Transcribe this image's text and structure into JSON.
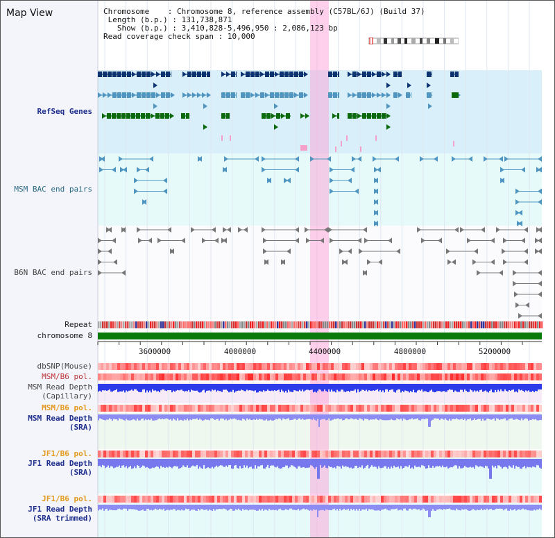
{
  "page": {
    "title": "Map View"
  },
  "info": {
    "chromosome_label": "Chromosome",
    "chromosome_value": "Chromosome 8, reference assembly (C57BL/6J) (Build 37)",
    "length_label": "Length (b.p.)",
    "length_value": "131,738,871",
    "show_label": "Show (b.p.)",
    "show_value": "3,410,828-5,496,950 : 2,086,123 bp",
    "span_label": "Read coverage check span",
    "span_value": "10,000"
  },
  "tracks": {
    "refseq": "RefSeq Genes",
    "msm_bac": "MSM BAC end pairs",
    "b6n_bac": "B6N BAC end pairs",
    "repeat": "Repeat",
    "chromosome": "chromosome 8",
    "dbsnp": "dbSNP(Mouse)",
    "msm_b6_pol_1": "MSM/B6 pol.",
    "msm_depth_cap_1": "MSM Read Depth",
    "msm_depth_cap_2": "(Capillary)",
    "msm_b6_pol_2": "MSM/B6 pol.",
    "msm_depth_sra_1": "MSM Read Depth",
    "msm_depth_sra_2": "(SRA)",
    "jf1_b6_pol_1": "JF1/B6 pol.",
    "jf1_depth_sra_1": "JF1 Read Depth",
    "jf1_depth_sra_2": "(SRA)",
    "jf1_b6_pol_2": "JF1/B6 pol.",
    "jf1_depth_trim_1": "JF1 Read Depth",
    "jf1_depth_trim_2": "(SRA trimmed)"
  },
  "axis": {
    "ticks": [
      "3600000",
      "4000000",
      "4400000",
      "4800000",
      "5200000"
    ]
  },
  "colors": {
    "refseq_bg": "#d9f0fa",
    "bac_bg": "#e6fafa",
    "navy_gene": "#0d3470",
    "blue_gene": "#4f95c0",
    "green_gene": "#0a6a0a",
    "chromosome": "#0a7a0a",
    "highlight": "#ffb0dd"
  }
}
